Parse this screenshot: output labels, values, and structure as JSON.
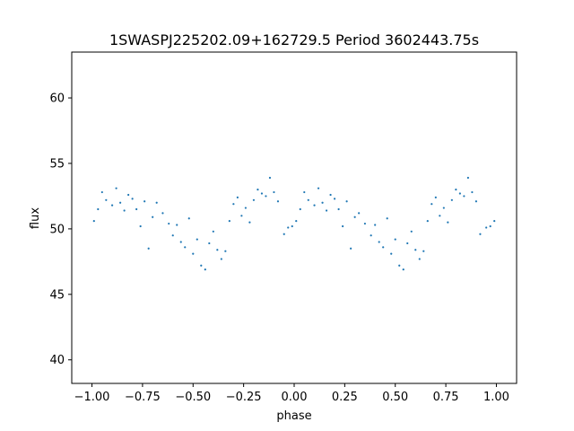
{
  "chart_data": {
    "type": "scatter",
    "title": "1SWASPJ225202.09+162729.5 Period 3602443.75s",
    "xlabel": "phase",
    "ylabel": "flux",
    "xlim": [
      -1.1,
      1.1
    ],
    "ylim": [
      38.2,
      63.5
    ],
    "xticks": [
      -1.0,
      -0.75,
      -0.5,
      -0.25,
      0.0,
      0.25,
      0.5,
      0.75,
      1.0
    ],
    "xtick_labels": [
      "−1.00",
      "−0.75",
      "−0.50",
      "−0.25",
      "0.00",
      "0.25",
      "0.50",
      "0.75",
      "1.00"
    ],
    "yticks": [
      40,
      45,
      50,
      55,
      60
    ],
    "ytick_labels": [
      "40",
      "45",
      "50",
      "55",
      "60"
    ],
    "grid": false,
    "marker_color": "#1f77b4",
    "series": [
      {
        "x": [
          -0.99,
          -0.97,
          -0.95,
          -0.93,
          -0.9,
          -0.88,
          -0.86,
          -0.84,
          -0.82,
          -0.8,
          -0.78,
          -0.76,
          -0.74,
          -0.72,
          -0.7,
          -0.68,
          -0.65,
          -0.62,
          -0.6,
          -0.58,
          -0.56,
          -0.54,
          -0.52,
          -0.5,
          -0.48,
          -0.46,
          -0.44,
          -0.42,
          -0.4,
          -0.38,
          -0.36,
          -0.34,
          -0.32,
          -0.3,
          -0.28,
          -0.26,
          -0.24,
          -0.22,
          -0.2,
          -0.18,
          -0.16,
          -0.14,
          -0.12,
          -0.1,
          -0.08,
          -0.05,
          -0.03,
          -0.01,
          0.01,
          0.03,
          0.05,
          0.07,
          0.1,
          0.12,
          0.14,
          0.16,
          0.18,
          0.2,
          0.22,
          0.24,
          0.26,
          0.28,
          0.3,
          0.32,
          0.35,
          0.38,
          0.4,
          0.42,
          0.44,
          0.46,
          0.48,
          0.5,
          0.52,
          0.54,
          0.56,
          0.58,
          0.6,
          0.62,
          0.64,
          0.66,
          0.68,
          0.7,
          0.72,
          0.74,
          0.76,
          0.78,
          0.8,
          0.82,
          0.84,
          0.86,
          0.88,
          0.9,
          0.92,
          0.95,
          0.97,
          0.99
        ],
        "y": [
          50.6,
          51.5,
          52.8,
          52.2,
          51.8,
          53.1,
          52.0,
          51.4,
          52.6,
          52.3,
          51.5,
          50.2,
          52.1,
          48.5,
          50.9,
          52.0,
          51.2,
          50.4,
          49.5,
          50.3,
          49.0,
          48.6,
          50.8,
          48.1,
          49.2,
          47.2,
          46.9,
          48.9,
          49.8,
          48.4,
          47.7,
          48.3,
          50.6,
          51.9,
          52.4,
          51.0,
          51.6,
          50.5,
          52.2,
          53.0,
          52.7,
          52.5,
          53.9,
          52.8,
          52.1,
          49.6,
          50.1,
          50.2,
          50.6,
          51.5,
          52.8,
          52.2,
          51.8,
          53.1,
          52.0,
          51.4,
          52.6,
          52.3,
          51.5,
          50.2,
          52.1,
          48.5,
          50.9,
          51.2,
          50.4,
          49.5,
          50.3,
          49.0,
          48.6,
          50.8,
          48.1,
          49.2,
          47.2,
          46.9,
          48.9,
          49.8,
          48.4,
          47.7,
          48.3,
          50.6,
          51.9,
          52.4,
          51.0,
          51.6,
          50.5,
          52.2,
          53.0,
          52.7,
          52.5,
          53.9,
          52.8,
          52.1,
          49.6,
          50.1,
          50.2,
          50.6
        ]
      }
    ]
  }
}
